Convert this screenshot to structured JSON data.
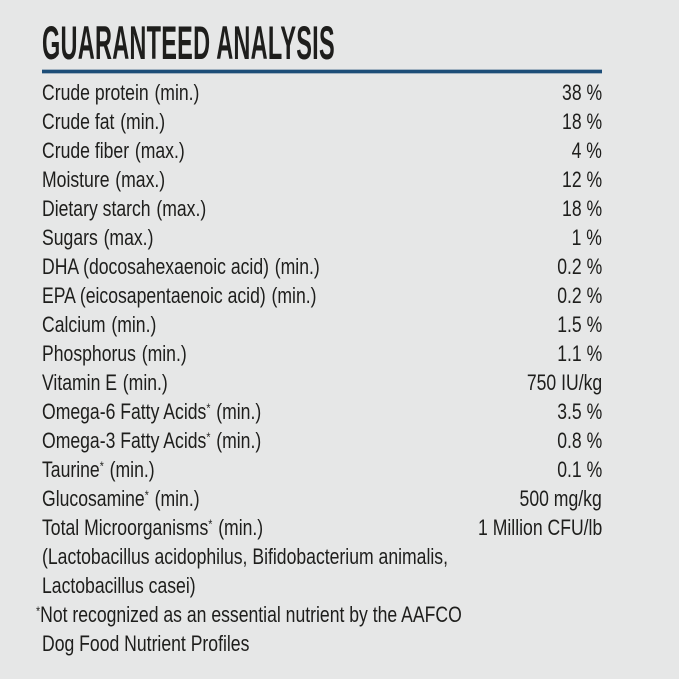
{
  "panel": {
    "title": "GUARANTEED ANALYSIS",
    "accent_color": "#1d4e78",
    "background_color": "#e6e7e7",
    "text_color": "#1e1e1c",
    "rows": [
      {
        "name": "Crude protein",
        "marker": "",
        "suffix": "(min.)",
        "value": "38 %"
      },
      {
        "name": "Crude fat",
        "marker": "",
        "suffix": "(min.)",
        "value": "18 %"
      },
      {
        "name": "Crude fiber",
        "marker": "",
        "suffix": "(max.)",
        "value": "4 %"
      },
      {
        "name": "Moisture",
        "marker": "",
        "suffix": "(max.)",
        "value": "12 %"
      },
      {
        "name": "Dietary starch",
        "marker": "",
        "suffix": "(max.)",
        "value": "18 %"
      },
      {
        "name": "Sugars",
        "marker": "",
        "suffix": "(max.)",
        "value": "1 %"
      },
      {
        "name": "DHA (docosahexaenoic acid)",
        "marker": "",
        "suffix": "(min.)",
        "value": "0.2 %"
      },
      {
        "name": "EPA (eicosapentaenoic acid)",
        "marker": "",
        "suffix": "(min.)",
        "value": "0.2 %"
      },
      {
        "name": "Calcium",
        "marker": "",
        "suffix": "(min.)",
        "value": "1.5 %"
      },
      {
        "name": "Phosphorus",
        "marker": "",
        "suffix": "(min.)",
        "value": "1.1 %"
      },
      {
        "name": "Vitamin E",
        "marker": "",
        "suffix": "(min.)",
        "value": "750 IU/kg"
      },
      {
        "name": "Omega-6 Fatty Acids",
        "marker": "*",
        "suffix": "(min.)",
        "value": "3.5 %"
      },
      {
        "name": "Omega-3 Fatty Acids",
        "marker": "*",
        "suffix": "(min.)",
        "value": "0.8 %"
      },
      {
        "name": "Taurine",
        "marker": "*",
        "suffix": "(min.)",
        "value": "0.1 %"
      },
      {
        "name": "Glucosamine",
        "marker": "*",
        "suffix": "(min.)",
        "value": "500 mg/kg"
      },
      {
        "name": "Total Microorganisms",
        "marker": "*",
        "suffix": "(min.)",
        "value": "1 Million CFU/lb"
      }
    ],
    "note_lines": [
      "(Lactobacillus acidophilus, Bifidobacterium animalis,",
      "Lactobacillus casei)"
    ],
    "footnote_marker": "*",
    "footnote_lines": [
      "Not recognized as an essential nutrient by the AAFCO",
      "Dog Food Nutrient Profiles"
    ]
  }
}
